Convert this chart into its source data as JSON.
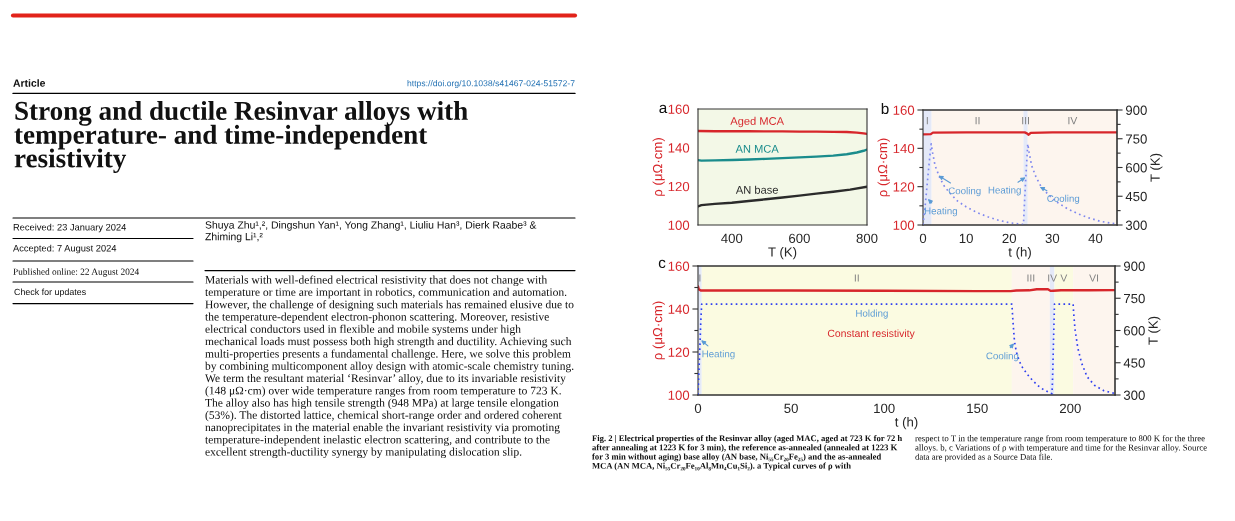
{
  "chart_data": [
    {
      "type": "other",
      "title": "Strong and ductile Resinvar alloys with temperature- and time-independent resistivity",
      "annotations": [
        "Article",
        "https://doi.org/10.1038/s41467-024-51572-7",
        "Received: 23 January 2024",
        "Accepted: 7 August 2024",
        "Published online: 22 August 2024",
        "Check for updates",
        "Shuya Zhu¹,², Dingshun Yan¹, Yong Zhang¹, Liuliu Han³, Dierk Raabe³ & Zhiming Li¹,²",
        "Materials with well-defined electrical resistivity that does not change with temperature or time are important in robotics, communication and automation. However, the challenge of designing such materials has remained elusive due to the temperature-dependent electron-phonon scattering. Moreover, resistive electrical conductors used in flexible and mobile systems under high mechanical loads must possess both high strength and ductility. Achieving such multi-properties presents a fundamental challenge. Here, we solve this problem by combining multicomponent alloy design with atomic-scale chemistry tuning. We term the resultant material ‘Resinvar’ alloy, due to its invariable resistivity (148 μΩ·cm) over wide temperature ranges from room temperature to 723 K. The alloy also has high tensile strength (948 MPa) at large tensile elongation (53%). The distorted lattice, chemical short-range order and ordered coherent nanoprecipitates in the material enable the invariant resistivity via promoting temperature-independent inelastic electron scattering, and contribute to the excellent strength-ductility synergy by manipulating dislocation slip."
      ]
    },
    {
      "type": "line",
      "title": "a",
      "xlabel": "T (K)",
      "ylabel": "ρ (μΩ·cm)",
      "xlim": [
        300,
        800
      ],
      "xticks": [
        400,
        600,
        800
      ],
      "ylim": [
        100,
        160
      ],
      "yticks": [
        100,
        120,
        140,
        160
      ],
      "bands": [
        {
          "axis": "x",
          "from": 300,
          "to": 800,
          "color": "#f3f8e7"
        }
      ],
      "series": [
        {
          "name": "Aged MCA",
          "color": "#d7262b",
          "x": [
            300,
            350,
            400,
            450,
            500,
            550,
            600,
            650,
            700,
            740,
            770,
            790,
            800
          ],
          "values": [
            148.6,
            148.5,
            148.5,
            148.5,
            148.4,
            148.4,
            148.3,
            148.3,
            148.2,
            148.1,
            147.8,
            147.4,
            147.1
          ]
        },
        {
          "name": "AN MCA",
          "color": "#1a8c8c",
          "x": [
            300,
            310,
            350,
            400,
            450,
            500,
            550,
            600,
            650,
            700,
            740,
            770,
            790,
            800
          ],
          "values": [
            133.6,
            133.3,
            133.4,
            133.6,
            133.9,
            134.2,
            134.6,
            135.0,
            135.4,
            135.9,
            136.6,
            137.5,
            138.4,
            139.0
          ]
        },
        {
          "name": "AN base",
          "color": "#2b2b2b",
          "x": [
            300,
            310,
            350,
            400,
            450,
            500,
            550,
            600,
            650,
            700,
            750,
            800
          ],
          "values": [
            109.6,
            110.3,
            110.9,
            111.5,
            112.4,
            113.3,
            114.2,
            115.2,
            116.2,
            117.2,
            118.3,
            119.8
          ]
        }
      ]
    },
    {
      "type": "line",
      "title": "b",
      "xlabel": "t (h)",
      "ylabel": "ρ (μΩ·cm)",
      "y2label": "T (K)",
      "xlim": [
        0,
        45
      ],
      "xticks": [
        0,
        10,
        20,
        30,
        40
      ],
      "ylim": [
        100,
        160
      ],
      "yticks": [
        100,
        {
          "value": 110,
          "label": null
        },
        120,
        {
          "value": 130,
          "label": null
        },
        140,
        {
          "value": 150,
          "label": null
        },
        160
      ],
      "y2lim": [
        300,
        900
      ],
      "y2ticks": [
        300,
        {
          "value": 375,
          "label": null
        },
        450,
        {
          "value": 525,
          "label": null
        },
        600,
        {
          "value": 675,
          "label": null
        },
        750,
        {
          "value": 825,
          "label": null
        },
        900
      ],
      "bands": [
        {
          "axis": "x",
          "from": 0,
          "to": 2,
          "label": "I",
          "color": "#e4e9f8"
        },
        {
          "axis": "x",
          "from": 2,
          "to": 23.3,
          "label": "II",
          "color": "#fdf5ee"
        },
        {
          "axis": "x",
          "from": 23.3,
          "to": 24.3,
          "label": "III",
          "color": "#e4e9f8"
        },
        {
          "axis": "x",
          "from": 24.3,
          "to": 45,
          "label": "IV",
          "color": "#fdf5ee"
        }
      ],
      "series": [
        {
          "color": "#d7262b",
          "x": [
            0,
            1.8,
            2.3,
            10,
            20,
            23.6,
            24.1,
            24.5,
            25.0,
            30,
            45
          ],
          "values": [
            147.3,
            147.4,
            148.2,
            148.3,
            148.3,
            148.3,
            147.8,
            147.1,
            148.1,
            148.3,
            148.3
          ]
        },
        {
          "color": "#7f88ef",
          "axis": "y2",
          "line_style": "dotted",
          "x": [
            0,
            0.5,
            1,
            1.5,
            1.9,
            2.2,
            2.8,
            3.8,
            5,
            6.5,
            8,
            10,
            12.5,
            15,
            17.5,
            20,
            22,
            23.3,
            23.8,
            24.3,
            24.6,
            25.2,
            26.2,
            27.4,
            29,
            31,
            33.5,
            36,
            38.5,
            41,
            43.5,
            45
          ],
          "values": [
            300,
            400,
            520,
            640,
            723,
            680,
            610,
            551,
            500,
            460,
            425,
            395,
            365,
            343,
            325,
            312,
            306,
            303,
            530,
            723,
            680,
            610,
            551,
            500,
            460,
            420,
            385,
            358,
            337,
            320,
            310,
            306
          ]
        }
      ],
      "annotations": [
        "Heating",
        "Cooling",
        "Heating",
        "Cooling"
      ]
    },
    {
      "type": "line",
      "title": "c",
      "xlabel": "t (h)",
      "ylabel": "ρ (μΩ·cm)",
      "y2label": "T (K)",
      "xlim": [
        0,
        224
      ],
      "xticks": [
        0,
        50,
        100,
        150,
        200
      ],
      "ylim": [
        100,
        160
      ],
      "yticks": [
        100,
        {
          "value": 110,
          "label": null
        },
        120,
        {
          "value": 130,
          "label": null
        },
        140,
        {
          "value": 150,
          "label": null
        },
        160
      ],
      "y2lim": [
        300,
        900
      ],
      "y2ticks": [
        300,
        {
          "value": 375,
          "label": null
        },
        450,
        {
          "value": 525,
          "label": null
        },
        600,
        {
          "value": 675,
          "label": null
        },
        750,
        {
          "value": 825,
          "label": null
        },
        900
      ],
      "bands": [
        {
          "axis": "x",
          "from": 0,
          "to": 2,
          "label": "I",
          "color": "#e4e9f8"
        },
        {
          "axis": "x",
          "from": 2,
          "to": 168.6,
          "label": "II",
          "color": "#fbfbe1"
        },
        {
          "axis": "x",
          "from": 168.6,
          "to": 189,
          "label": "III",
          "color": "#fdf5ee"
        },
        {
          "axis": "x",
          "from": 189,
          "to": 191.5,
          "label": "IV",
          "color": "#e4e9f8"
        },
        {
          "axis": "x",
          "from": 191.5,
          "to": 201.5,
          "label": "V",
          "color": "#fbfbe1"
        },
        {
          "axis": "x",
          "from": 201.5,
          "to": 224,
          "label": "VI",
          "color": "#fdf5ee"
        }
      ],
      "series": [
        {
          "color": "#d7262b",
          "x": [
            0,
            0.4,
            1.5,
            50,
            100,
            150,
            168,
            171,
            178,
            182,
            188,
            189.5,
            191,
            195,
            210,
            224
          ],
          "values": [
            150.5,
            149.2,
            148.6,
            148.6,
            148.5,
            148.3,
            148.3,
            148.6,
            148.7,
            149.2,
            149.2,
            148.4,
            148.5,
            148.7,
            148.7,
            148.8
          ]
        },
        {
          "color": "#2f40f0",
          "axis": "y2",
          "line_style": "dotted",
          "x": [
            0,
            0.5,
            1,
            1.5,
            2,
            168.6,
            169.2,
            170,
            171,
            172.5,
            174,
            177,
            180,
            184,
            188,
            190.2,
            190.6,
            191,
            191.5,
            201.5,
            201.8,
            202.5,
            204,
            206,
            209,
            213,
            218,
            224
          ],
          "values": [
            300,
            410,
            520,
            640,
            723,
            723,
            640,
            550,
            500,
            460,
            432,
            395,
            365,
            333,
            315,
            306,
            420,
            560,
            723,
            723,
            680,
            607,
            520,
            450,
            385,
            345,
            320,
            307
          ]
        }
      ],
      "annotations": [
        "Heating",
        "Holding",
        "Constant resistivity",
        "Cooling"
      ]
    },
    {
      "type": "other",
      "annotations": [
        "Fig. 2 | Electrical properties of the Resinvar alloy (aged MAC, aged at 723 K for 72 h after annealing at 1223 K for 3 min), the reference as-annealed (annealed at 1223 K for 3 min without aging) base alloy (AN base, Ni₅₅Cr₂₀Fe₂₅) and the as-annealed MCA (AN MCA, Ni₅₅Cr₂₀Fe₁₀Al₈Mn₄Cu₁Si₂). a Typical curves of ρ with",
        "respect to T in the temperature range from room temperature to 800 K for the three alloys. b, c Variations of ρ with temperature and time for the Resinvar alloy. Source data are provided as a Source Data file."
      ]
    }
  ]
}
